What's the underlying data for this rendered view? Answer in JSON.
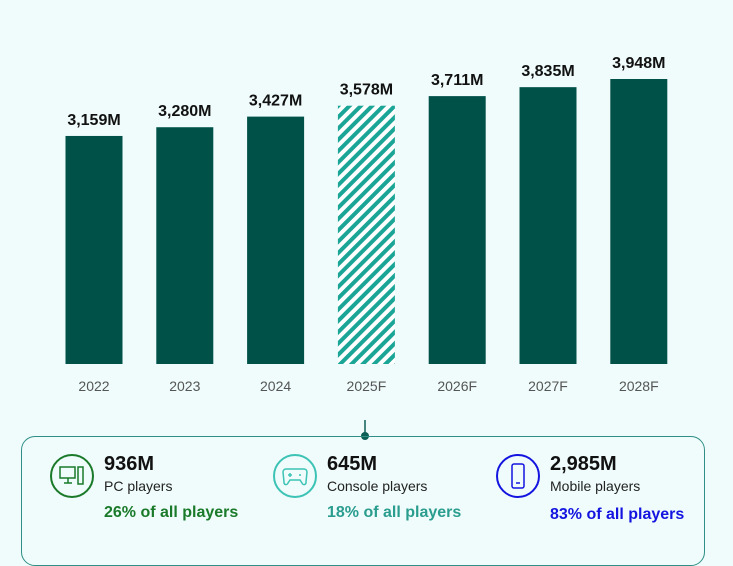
{
  "chart_data": {
    "type": "bar",
    "categories": [
      "2022",
      "2023",
      "2024",
      "2025F",
      "2026F",
      "2027F",
      "2028F"
    ],
    "values": [
      3159,
      3280,
      3427,
      3578,
      3711,
      3835,
      3948
    ],
    "data_labels": [
      "3,159M",
      "3,280M",
      "3,427M",
      "3,578M",
      "3,711M",
      "3,835M",
      "3,948M"
    ],
    "forecast_highlight": "2025F",
    "ylim": [
      0,
      3948
    ],
    "grid": false,
    "colors": {
      "bar": "#005249",
      "hatch": "#1aa597"
    }
  },
  "stats": [
    {
      "value": "936M",
      "label": "PC players",
      "share": "26% of all players",
      "color": "#1a7a2a",
      "icon": "desktop-pc-icon"
    },
    {
      "value": "645M",
      "label": "Console players",
      "share": "18% of all players",
      "color": "#2a9d8f",
      "icon": "gamepad-icon"
    },
    {
      "value": "2,985M",
      "label": "Mobile players",
      "share": "83% of all players",
      "color": "#1414e0",
      "icon": "mobile-phone-icon"
    }
  ]
}
